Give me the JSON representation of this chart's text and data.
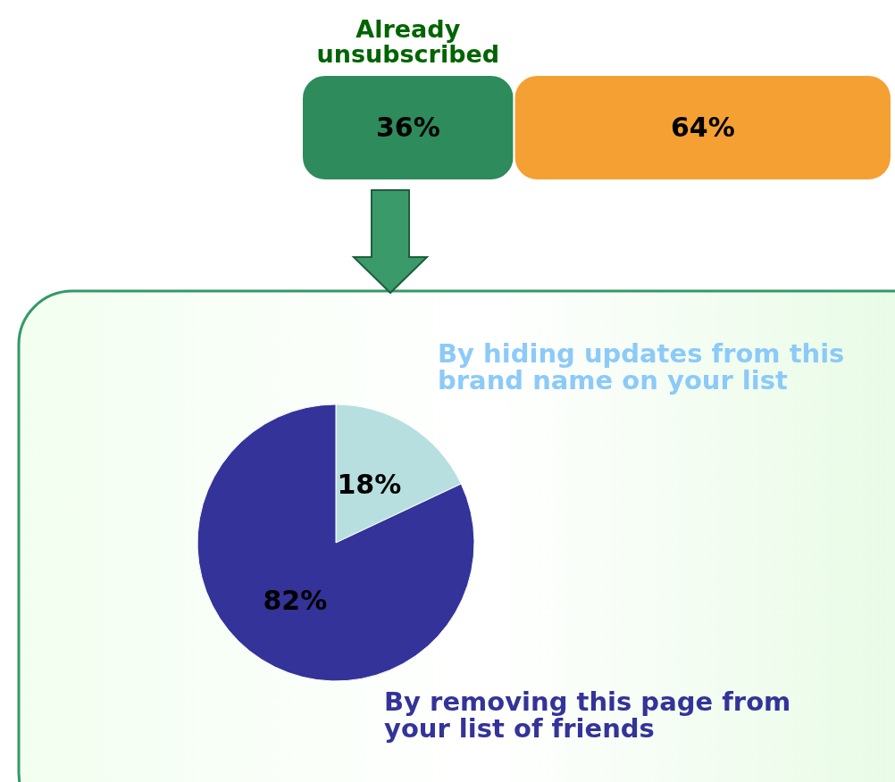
{
  "chart_data": [
    {
      "type": "bar",
      "orientation": "horizontal",
      "stacked": true,
      "categories": [
        null
      ],
      "data_labels": true,
      "series": [
        {
          "name": "Already unsubscribed",
          "color": "#2e8b5c",
          "values": [
            36
          ],
          "value_labels": [
            "36%"
          ]
        },
        {
          "color": "#f5a033",
          "values": [
            64
          ],
          "value_labels": [
            "64%"
          ]
        }
      ]
    },
    {
      "type": "pie",
      "categories": [
        "By hiding updates from this brand name on your list",
        "By removing this page from your list of friends"
      ],
      "values": [
        18,
        82
      ],
      "colors": [
        "#b8dfe0",
        "#333399"
      ],
      "data_labels": true,
      "value_labels": [
        "18%",
        "82%"
      ]
    }
  ]
}
